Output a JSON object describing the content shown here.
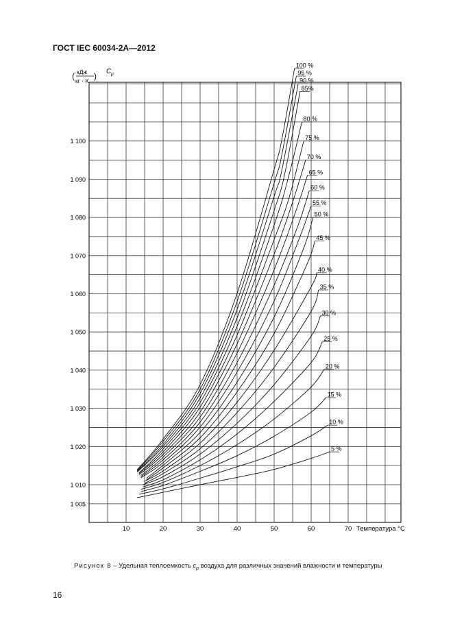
{
  "header": {
    "standard": "ГОСТ IEC 60034-2A—2012"
  },
  "caption": {
    "figure": "Рисунок 8",
    "text": " – Удельная теплоемкость ",
    "symbol": "c",
    "sub": "p",
    "rest": " воздуха для различных значений влажности и температуры"
  },
  "page_number": "16",
  "chart_data": {
    "type": "line",
    "ylabel_unit_num": "кДж",
    "ylabel_unit_den": "кг · К",
    "ylabel_symbol": "C",
    "ylabel_symbol_sub": "p",
    "xlabel": "Температура °C",
    "x_ticks": [
      10,
      20,
      30,
      40,
      50,
      60,
      70
    ],
    "y_ticks": [
      1005,
      1010,
      1020,
      1030,
      1040,
      1050,
      1060,
      1070,
      1080,
      1090,
      1100
    ],
    "y_tick_labels": [
      "1 005",
      "1 010",
      "1 020",
      "1 030",
      "1 040",
      "1 050",
      "1 060",
      "1 070",
      "1 080",
      "1 090",
      "1 100"
    ],
    "xlim": [
      0,
      75
    ],
    "ylim": [
      1000,
      1120
    ],
    "grid": true,
    "series": [
      {
        "name": "5 %",
        "points": [
          [
            13,
            1006.6
          ],
          [
            20,
            1008.0
          ],
          [
            30,
            1010.0
          ],
          [
            40,
            1011.9
          ],
          [
            50,
            1014.0
          ],
          [
            60,
            1016.9
          ],
          [
            65,
            1018.6
          ]
        ]
      },
      {
        "name": "10 %",
        "points": [
          [
            13.5,
            1007.5
          ],
          [
            20,
            1008.9
          ],
          [
            30,
            1011.7
          ],
          [
            40,
            1014.7
          ],
          [
            50,
            1018.0
          ],
          [
            60,
            1022.8
          ],
          [
            64.5,
            1025.6
          ]
        ]
      },
      {
        "name": "15 %",
        "points": [
          [
            14,
            1008.2
          ],
          [
            20,
            1009.8
          ],
          [
            30,
            1013.5
          ],
          [
            40,
            1017.6
          ],
          [
            50,
            1022.7
          ],
          [
            60,
            1029.0
          ],
          [
            64,
            1032.8
          ]
        ]
      },
      {
        "name": "20 %",
        "points": [
          [
            14,
            1008.8
          ],
          [
            20,
            1010.6
          ],
          [
            30,
            1015.0
          ],
          [
            40,
            1020.5
          ],
          [
            50,
            1027.2
          ],
          [
            60,
            1035.6
          ],
          [
            63.5,
            1040.2
          ]
        ]
      },
      {
        "name": "25 %",
        "points": [
          [
            14.5,
            1009.4
          ],
          [
            20,
            1011.3
          ],
          [
            30,
            1016.5
          ],
          [
            40,
            1023.3
          ],
          [
            50,
            1031.8
          ],
          [
            60,
            1042.0
          ],
          [
            63,
            1047.4
          ]
        ]
      },
      {
        "name": "30 %",
        "points": [
          [
            14.5,
            1010.0
          ],
          [
            20,
            1012.1
          ],
          [
            30,
            1018.0
          ],
          [
            40,
            1026.1
          ],
          [
            50,
            1036.2
          ],
          [
            60,
            1048.9
          ],
          [
            62.5,
            1054.2
          ]
        ]
      },
      {
        "name": "35 %",
        "points": [
          [
            15,
            1010.4
          ],
          [
            20,
            1012.9
          ],
          [
            30,
            1019.4
          ],
          [
            40,
            1028.9
          ],
          [
            50,
            1040.7
          ],
          [
            60,
            1055.4
          ],
          [
            62,
            1061.0
          ]
        ]
      },
      {
        "name": "40 %",
        "points": [
          [
            15,
            1010.9
          ],
          [
            20,
            1013.6
          ],
          [
            30,
            1020.9
          ],
          [
            40,
            1031.6
          ],
          [
            50,
            1045.2
          ],
          [
            60,
            1061.8
          ],
          [
            61.5,
            1065.5
          ]
        ]
      },
      {
        "name": "45 %",
        "points": [
          [
            15.5,
            1011.3
          ],
          [
            20,
            1014.4
          ],
          [
            30,
            1022.3
          ],
          [
            40,
            1034.3
          ],
          [
            50,
            1049.6
          ],
          [
            59,
            1068.0
          ],
          [
            61,
            1073.8
          ]
        ]
      },
      {
        "name": "50 %",
        "points": [
          [
            15.5,
            1011.7
          ],
          [
            20,
            1015.1
          ],
          [
            30,
            1023.7
          ],
          [
            40,
            1036.9
          ],
          [
            50,
            1053.9
          ],
          [
            58,
            1072.0
          ],
          [
            60.5,
            1080.0
          ]
        ]
      },
      {
        "name": "55 %",
        "points": [
          [
            14,
            1011.8
          ],
          [
            20,
            1015.8
          ],
          [
            30,
            1025.1
          ],
          [
            40,
            1039.5
          ],
          [
            50,
            1058.1
          ],
          [
            57,
            1075.0
          ],
          [
            60,
            1083.0
          ]
        ]
      },
      {
        "name": "60 %",
        "points": [
          [
            14,
            1012.1
          ],
          [
            20,
            1016.5
          ],
          [
            30,
            1026.4
          ],
          [
            40,
            1042.0
          ],
          [
            50,
            1062.2
          ],
          [
            56.5,
            1078.0
          ],
          [
            59.5,
            1087.0
          ]
        ]
      },
      {
        "name": "65 %",
        "points": [
          [
            14,
            1012.4
          ],
          [
            20,
            1017.2
          ],
          [
            30,
            1027.7
          ],
          [
            40,
            1044.5
          ],
          [
            50,
            1066.3
          ],
          [
            56,
            1082.0
          ],
          [
            59,
            1091.0
          ]
        ]
      },
      {
        "name": "70 %",
        "points": [
          [
            13.5,
            1012.6
          ],
          [
            20,
            1017.9
          ],
          [
            30,
            1029.0
          ],
          [
            40,
            1046.9
          ],
          [
            50,
            1070.3
          ],
          [
            55,
            1084.0
          ],
          [
            58.5,
            1095.0
          ]
        ]
      },
      {
        "name": "75 %",
        "points": [
          [
            13.5,
            1012.9
          ],
          [
            20,
            1018.6
          ],
          [
            30,
            1030.3
          ],
          [
            40,
            1049.2
          ],
          [
            50,
            1074.2
          ],
          [
            54,
            1085.0
          ],
          [
            58,
            1100.0
          ]
        ]
      },
      {
        "name": "80 %",
        "points": [
          [
            13.5,
            1013.1
          ],
          [
            20,
            1019.3
          ],
          [
            30,
            1031.5
          ],
          [
            40,
            1051.5
          ],
          [
            50,
            1078.0
          ],
          [
            54,
            1091.0
          ],
          [
            57.5,
            1105.0
          ]
        ]
      },
      {
        "name": "85%",
        "points": [
          [
            13,
            1013.3
          ],
          [
            20,
            1020.0
          ],
          [
            30,
            1032.7
          ],
          [
            40,
            1053.7
          ],
          [
            50,
            1081.8
          ],
          [
            53,
            1092.0
          ],
          [
            57,
            1113.0
          ]
        ]
      },
      {
        "name": "90 %",
        "points": [
          [
            13,
            1013.5
          ],
          [
            20,
            1020.6
          ],
          [
            30,
            1033.9
          ],
          [
            40,
            1055.9
          ],
          [
            50,
            1085.5
          ],
          [
            52,
            1092.0
          ],
          [
            56.5,
            1115.0
          ]
        ]
      },
      {
        "name": "95 %",
        "points": [
          [
            13,
            1013.7
          ],
          [
            20,
            1021.3
          ],
          [
            30,
            1035.0
          ],
          [
            40,
            1058.0
          ],
          [
            50,
            1089.0
          ],
          [
            52,
            1096.0
          ],
          [
            56,
            1117.0
          ]
        ]
      },
      {
        "name": "100 %",
        "points": [
          [
            13,
            1013.9
          ],
          [
            20,
            1021.9
          ],
          [
            30,
            1036.2
          ],
          [
            40,
            1060.1
          ],
          [
            50,
            1092.6
          ],
          [
            52,
            1100.0
          ],
          [
            55.5,
            1119.0
          ]
        ]
      }
    ]
  }
}
